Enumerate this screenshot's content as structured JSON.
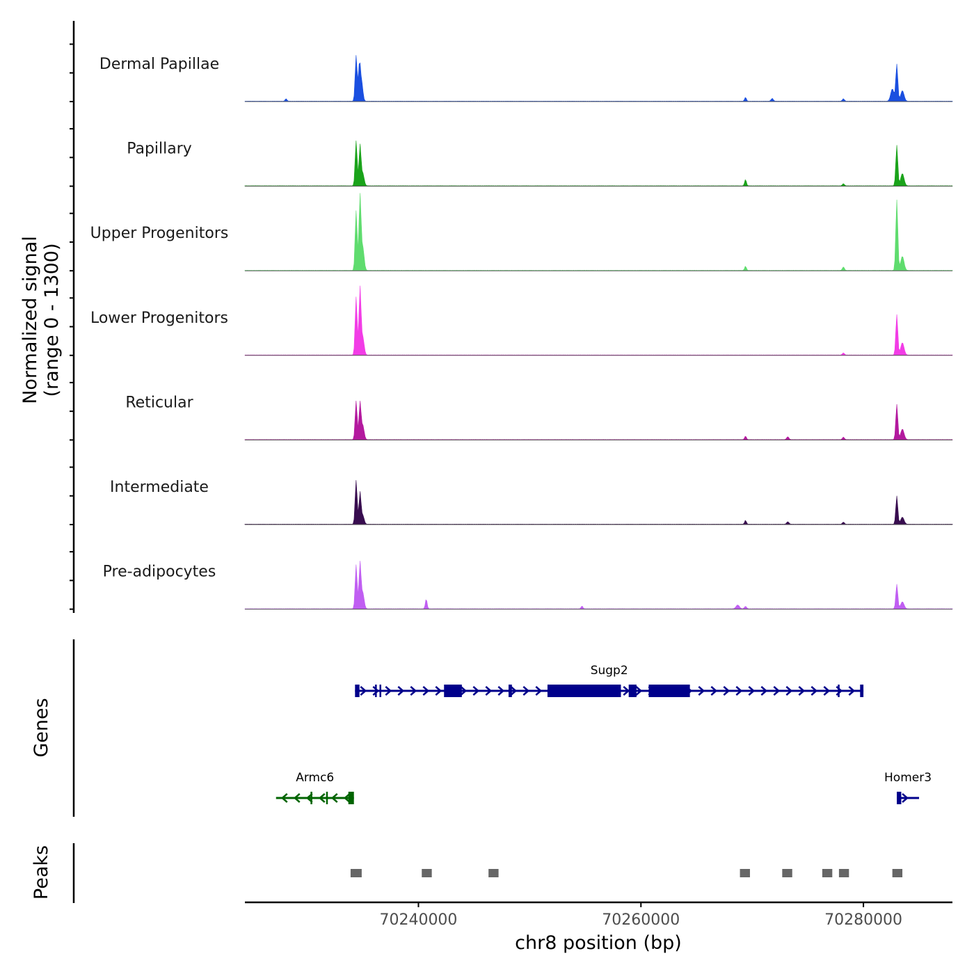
{
  "chart_data": {
    "type": "area",
    "title": "",
    "ylabel_line1": "Normalized signal",
    "ylabel_line2": "(range 0 - 1300)",
    "ylim": [
      0,
      1300
    ],
    "xlabel": "chr8 position (bp)",
    "xlim": [
      70224400,
      70288000
    ],
    "xticks": [
      70240000,
      70260000,
      70280000
    ],
    "xtick_labels": [
      "70240000",
      "70260000",
      "70280000"
    ],
    "genes_label": "Genes",
    "peaks_label": "Peaks",
    "tracks": [
      {
        "name": "Dermal Papillae",
        "color": "#1a4fe0",
        "peaks": [
          {
            "pos": 70234400,
            "height": 1300,
            "width": 90
          },
          {
            "pos": 70234700,
            "height": 1050,
            "width": 90
          },
          {
            "pos": 70234900,
            "height": 520,
            "width": 110
          },
          {
            "pos": 70228100,
            "height": 70,
            "width": 80
          },
          {
            "pos": 70269400,
            "height": 110,
            "width": 80
          },
          {
            "pos": 70271800,
            "height": 80,
            "width": 100
          },
          {
            "pos": 70278200,
            "height": 70,
            "width": 90
          },
          {
            "pos": 70283000,
            "height": 1050,
            "width": 90
          },
          {
            "pos": 70282600,
            "height": 350,
            "width": 150
          },
          {
            "pos": 70283500,
            "height": 300,
            "width": 150
          }
        ]
      },
      {
        "name": "Papillary",
        "color": "#1aa31a",
        "peaks": [
          {
            "pos": 70234400,
            "height": 1280,
            "width": 90
          },
          {
            "pos": 70234750,
            "height": 1150,
            "width": 90
          },
          {
            "pos": 70235000,
            "height": 350,
            "width": 120
          },
          {
            "pos": 70269400,
            "height": 180,
            "width": 80
          },
          {
            "pos": 70278200,
            "height": 60,
            "width": 90
          },
          {
            "pos": 70283000,
            "height": 1150,
            "width": 90
          },
          {
            "pos": 70283500,
            "height": 350,
            "width": 150
          }
        ]
      },
      {
        "name": "Upper Progenitors",
        "color": "#5fdc6e",
        "peaks": [
          {
            "pos": 70234400,
            "height": 1700,
            "width": 90
          },
          {
            "pos": 70234750,
            "height": 2150,
            "width": 90
          },
          {
            "pos": 70235000,
            "height": 650,
            "width": 120
          },
          {
            "pos": 70269400,
            "height": 120,
            "width": 80
          },
          {
            "pos": 70278200,
            "height": 100,
            "width": 90
          },
          {
            "pos": 70283000,
            "height": 2000,
            "width": 90
          },
          {
            "pos": 70283500,
            "height": 400,
            "width": 150
          }
        ]
      },
      {
        "name": "Lower Progenitors",
        "color": "#f23ce6",
        "peaks": [
          {
            "pos": 70234400,
            "height": 1650,
            "width": 90
          },
          {
            "pos": 70234750,
            "height": 1900,
            "width": 90
          },
          {
            "pos": 70235000,
            "height": 500,
            "width": 120
          },
          {
            "pos": 70278200,
            "height": 60,
            "width": 90
          },
          {
            "pos": 70283000,
            "height": 1150,
            "width": 90
          },
          {
            "pos": 70283500,
            "height": 350,
            "width": 150
          }
        ]
      },
      {
        "name": "Reticular",
        "color": "#b3199e",
        "peaks": [
          {
            "pos": 70234400,
            "height": 1100,
            "width": 90
          },
          {
            "pos": 70234750,
            "height": 1050,
            "width": 90
          },
          {
            "pos": 70235000,
            "height": 400,
            "width": 120
          },
          {
            "pos": 70269400,
            "height": 100,
            "width": 80
          },
          {
            "pos": 70273200,
            "height": 80,
            "width": 100
          },
          {
            "pos": 70278200,
            "height": 70,
            "width": 90
          },
          {
            "pos": 70283000,
            "height": 1000,
            "width": 90
          },
          {
            "pos": 70283500,
            "height": 300,
            "width": 150
          }
        ]
      },
      {
        "name": "Intermediate",
        "color": "#380d4f",
        "peaks": [
          {
            "pos": 70234400,
            "height": 1250,
            "width": 90
          },
          {
            "pos": 70234750,
            "height": 900,
            "width": 90
          },
          {
            "pos": 70235000,
            "height": 250,
            "width": 120
          },
          {
            "pos": 70269400,
            "height": 110,
            "width": 80
          },
          {
            "pos": 70273200,
            "height": 70,
            "width": 100
          },
          {
            "pos": 70278200,
            "height": 60,
            "width": 90
          },
          {
            "pos": 70283000,
            "height": 800,
            "width": 90
          },
          {
            "pos": 70283500,
            "height": 200,
            "width": 150
          }
        ]
      },
      {
        "name": "Pre-adipocytes",
        "color": "#c05ef2",
        "peaks": [
          {
            "pos": 70234400,
            "height": 1250,
            "width": 90
          },
          {
            "pos": 70234750,
            "height": 1300,
            "width": 90
          },
          {
            "pos": 70235000,
            "height": 450,
            "width": 120
          },
          {
            "pos": 70240700,
            "height": 280,
            "width": 80
          },
          {
            "pos": 70254700,
            "height": 80,
            "width": 80
          },
          {
            "pos": 70268700,
            "height": 110,
            "width": 150
          },
          {
            "pos": 70269400,
            "height": 70,
            "width": 100
          },
          {
            "pos": 70283000,
            "height": 700,
            "width": 90
          },
          {
            "pos": 70283500,
            "height": 200,
            "width": 150
          }
        ]
      }
    ],
    "genes": [
      {
        "name": "Sugp2",
        "strand": "+",
        "color": "#00008b",
        "start": 70234300,
        "end": 70280000,
        "row": 1,
        "exons": [
          [
            70234300,
            70234700
          ],
          [
            70236100,
            70236200
          ],
          [
            70236500,
            70236600
          ],
          [
            70242300,
            70243900
          ],
          [
            70248100,
            70248400
          ],
          [
            70251600,
            70258200
          ],
          [
            70258900,
            70259600
          ],
          [
            70260700,
            70264400
          ],
          [
            70277700,
            70277800
          ],
          [
            70279700,
            70280000
          ]
        ]
      },
      {
        "name": "Armc6",
        "strand": "-",
        "color": "#006400",
        "start": 70227200,
        "end": 70234200,
        "row": 2,
        "exons": [
          [
            70233700,
            70234200
          ],
          [
            70230300,
            70230400
          ],
          [
            70231700,
            70231800
          ]
        ]
      },
      {
        "name": "Homer3",
        "strand": "+",
        "color": "#00008b",
        "start": 70283000,
        "end": 70285000,
        "row": 2,
        "exons": [
          [
            70283000,
            70283400
          ]
        ]
      }
    ],
    "peak_regions": [
      [
        70233900,
        70234900
      ],
      [
        70240300,
        70241200
      ],
      [
        70246300,
        70247200
      ],
      [
        70268900,
        70269800
      ],
      [
        70272700,
        70273600
      ],
      [
        70276300,
        70277200
      ],
      [
        70277800,
        70278700
      ],
      [
        70282600,
        70283500
      ]
    ],
    "peak_color": "#666666"
  }
}
